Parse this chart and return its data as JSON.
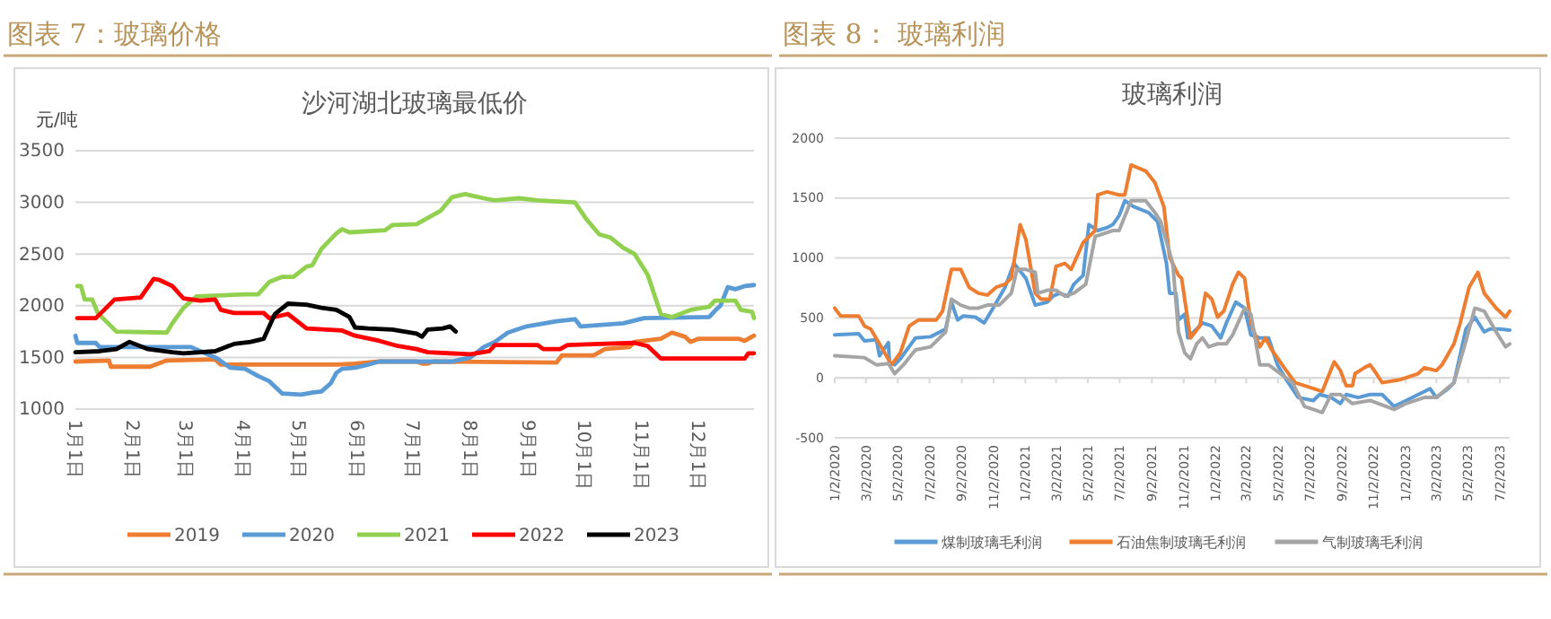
{
  "chart_data": [
    {
      "type": "line",
      "title": "图表 7：玻璃价格",
      "subtitle": "沙河湖北玻璃最低价",
      "ylabel": "元/吨",
      "xlim": [
        "--01-01",
        "--12-31"
      ],
      "xticks": [
        {
          "value": "--01-01",
          "label": "1月1日"
        },
        {
          "value": "--02-01",
          "label": "2月1日"
        },
        {
          "value": "--03-01",
          "label": "3月1日"
        },
        {
          "value": "--04-01",
          "label": "4月1日"
        },
        {
          "value": "--05-01",
          "label": "5月1日"
        },
        {
          "value": "--06-01",
          "label": "6月1日"
        },
        {
          "value": "--07-01",
          "label": "7月1日"
        },
        {
          "value": "--08-01",
          "label": "8月1日"
        },
        {
          "value": "--09-01",
          "label": "9月1日"
        },
        {
          "value": "--10-01",
          "label": "10月1日"
        },
        {
          "value": "--11-01",
          "label": "11月1日"
        },
        {
          "value": "--12-01",
          "label": "12月1日"
        }
      ],
      "ylim": [
        1000,
        3500
      ],
      "yticks": [
        1000,
        1500,
        2000,
        2500,
        3000,
        3500
      ],
      "grid": "y",
      "legend": "bottom",
      "marker": "none",
      "line_style": "solid",
      "series": [
        {
          "name": "2019",
          "color": "#ed7d31",
          "x": [
            "--01-01",
            "--01-19",
            "--01-20",
            "--02-10",
            "--02-19",
            "--03-17",
            "--03-20",
            "--05-21",
            "--05-31",
            "--06-13",
            "--07-03",
            "--07-06",
            "--07-09",
            "--07-12",
            "--09-16",
            "--09-19",
            "--10-06",
            "--10-12",
            "--10-25",
            "--10-28",
            "--11-11",
            "--11-17",
            "--11-24",
            "--11-27",
            "--12-01",
            "--12-23",
            "--12-26",
            "--12-31"
          ],
          "values": [
            1460,
            1470,
            1410,
            1410,
            1470,
            1480,
            1430,
            1430,
            1440,
            1460,
            1460,
            1440,
            1440,
            1460,
            1450,
            1520,
            1520,
            1580,
            1600,
            1650,
            1680,
            1740,
            1700,
            1650,
            1680,
            1680,
            1660,
            1710
          ]
        },
        {
          "name": "2020",
          "color": "#5b9bd5",
          "x": [
            "--01-01",
            "--01-02",
            "--01-12",
            "--01-14",
            "--03-04",
            "--03-18",
            "--03-25",
            "--04-02",
            "--04-09",
            "--04-15",
            "--04-22",
            "--05-02",
            "--05-08",
            "--05-13",
            "--05-18",
            "--05-21",
            "--05-24",
            "--05-31",
            "--06-07",
            "--06-13",
            "--07-22",
            "--08-01",
            "--08-08",
            "--08-14",
            "--08-21",
            "--08-31",
            "--09-16",
            "--09-26",
            "--09-29",
            "--10-22",
            "--11-02",
            "--12-07",
            "--12-10",
            "--12-13",
            "--12-17",
            "--12-21",
            "--12-26",
            "--12-31"
          ],
          "values": [
            1710,
            1640,
            1640,
            1600,
            1600,
            1490,
            1400,
            1390,
            1320,
            1270,
            1150,
            1140,
            1160,
            1170,
            1250,
            1350,
            1390,
            1400,
            1430,
            1460,
            1460,
            1500,
            1600,
            1650,
            1740,
            1800,
            1850,
            1870,
            1800,
            1830,
            1880,
            1890,
            1950,
            2000,
            2180,
            2160,
            2190,
            2200
          ]
        },
        {
          "name": "2021",
          "color": "#92d050",
          "x": [
            "--01-02",
            "--01-04",
            "--01-06",
            "--01-10",
            "--01-13",
            "--01-23",
            "--02-19",
            "--02-22",
            "--02-28",
            "--03-07",
            "--04-02",
            "--04-09",
            "--04-15",
            "--04-22",
            "--04-28",
            "--05-05",
            "--05-08",
            "--05-13",
            "--05-21",
            "--05-24",
            "--05-28",
            "--06-16",
            "--06-20",
            "--07-03",
            "--07-16",
            "--07-22",
            "--07-29",
            "--08-08",
            "--08-14",
            "--08-27",
            "--09-06",
            "--09-26",
            "--10-02",
            "--10-09",
            "--10-15",
            "--10-22",
            "--10-28",
            "--11-04",
            "--11-11",
            "--11-17",
            "--11-27",
            "--12-07",
            "--12-10",
            "--12-21",
            "--12-24",
            "--12-30",
            "--12-31"
          ],
          "values": [
            2190,
            2190,
            2060,
            2060,
            1930,
            1750,
            1740,
            1830,
            1980,
            2090,
            2110,
            2110,
            2230,
            2280,
            2280,
            2380,
            2390,
            2550,
            2700,
            2740,
            2710,
            2730,
            2780,
            2790,
            2920,
            3050,
            3080,
            3040,
            3020,
            3040,
            3020,
            3000,
            2840,
            2690,
            2660,
            2560,
            2500,
            2300,
            1920,
            1890,
            1960,
            1990,
            2050,
            2050,
            1960,
            1940,
            1880
          ]
        },
        {
          "name": "2022",
          "color": "#ff0000",
          "x": [
            "--01-02",
            "--01-12",
            "--01-22",
            "--02-05",
            "--02-12",
            "--02-15",
            "--02-22",
            "--02-28",
            "--03-09",
            "--03-17",
            "--03-20",
            "--03-27",
            "--04-12",
            "--04-15",
            "--04-25",
            "--05-05",
            "--05-24",
            "--05-31",
            "--06-13",
            "--06-23",
            "--07-03",
            "--07-09",
            "--08-01",
            "--08-11",
            "--08-14",
            "--09-06",
            "--09-09",
            "--09-18",
            "--09-22",
            "--10-09",
            "--10-28",
            "--11-04",
            "--11-11",
            "--12-26",
            "--12-28",
            "--12-31"
          ],
          "values": [
            1880,
            1880,
            2060,
            2080,
            2260,
            2250,
            2190,
            2070,
            2050,
            2060,
            1960,
            1930,
            1930,
            1880,
            1920,
            1780,
            1760,
            1710,
            1660,
            1610,
            1580,
            1550,
            1530,
            1560,
            1620,
            1620,
            1580,
            1580,
            1620,
            1630,
            1640,
            1610,
            1490,
            1490,
            1540,
            1540
          ]
        },
        {
          "name": "2023",
          "color": "#000000",
          "x": [
            "--01-01",
            "--01-14",
            "--01-23",
            "--01-30",
            "--02-09",
            "--02-22",
            "--02-28",
            "--03-17",
            "--03-27",
            "--04-05",
            "--04-12",
            "--04-18",
            "--04-25",
            "--05-05",
            "--05-13",
            "--05-21",
            "--05-28",
            "--05-31",
            "--06-07",
            "--06-20",
            "--07-03",
            "--07-06",
            "--07-09",
            "--07-17",
            "--07-21",
            "--07-24"
          ],
          "values": [
            1550,
            1560,
            1580,
            1650,
            1580,
            1550,
            1540,
            1560,
            1630,
            1650,
            1680,
            1920,
            2020,
            2010,
            1980,
            1960,
            1890,
            1790,
            1780,
            1770,
            1730,
            1700,
            1770,
            1780,
            1800,
            1750
          ]
        }
      ]
    },
    {
      "type": "line",
      "title": "图表 8： 玻璃利润",
      "subtitle": "玻璃利润",
      "xlim": [
        "2020-01-02",
        "2023-07-21"
      ],
      "xticks": [
        {
          "value": "2020-01-02",
          "label": "1/2/2020"
        },
        {
          "value": "2020-03-02",
          "label": "3/2/2020"
        },
        {
          "value": "2020-05-02",
          "label": "5/2/2020"
        },
        {
          "value": "2020-07-02",
          "label": "7/2/2020"
        },
        {
          "value": "2020-09-02",
          "label": "9/2/2020"
        },
        {
          "value": "2020-11-02",
          "label": "11/2/2020"
        },
        {
          "value": "2021-01-02",
          "label": "1/2/2021"
        },
        {
          "value": "2021-03-02",
          "label": "3/2/2021"
        },
        {
          "value": "2021-05-02",
          "label": "5/2/2021"
        },
        {
          "value": "2021-07-02",
          "label": "7/2/2021"
        },
        {
          "value": "2021-09-02",
          "label": "9/2/2021"
        },
        {
          "value": "2021-11-02",
          "label": "11/2/2021"
        },
        {
          "value": "2022-01-02",
          "label": "1/2/2022"
        },
        {
          "value": "2022-03-02",
          "label": "3/2/2022"
        },
        {
          "value": "2022-05-02",
          "label": "5/2/2022"
        },
        {
          "value": "2022-07-02",
          "label": "7/2/2022"
        },
        {
          "value": "2022-09-02",
          "label": "9/2/2022"
        },
        {
          "value": "2022-11-02",
          "label": "11/2/2022"
        },
        {
          "value": "2023-01-02",
          "label": "1/2/2023"
        },
        {
          "value": "2023-03-02",
          "label": "3/2/2023"
        },
        {
          "value": "2023-05-02",
          "label": "5/2/2023"
        },
        {
          "value": "2023-07-02",
          "label": "7/2/2023"
        }
      ],
      "ylim": [
        -500,
        2000
      ],
      "yticks": [
        -500,
        0,
        500,
        1000,
        1500,
        2000
      ],
      "grid": "y",
      "legend": "bottom",
      "marker": "none",
      "line_style": "solid",
      "series": [
        {
          "name": "煤制玻璃毛利润",
          "color": "#5b9bd5",
          "x": [
            "2020-01-02",
            "2020-02-17",
            "2020-02-28",
            "2020-03-22",
            "2020-03-28",
            "2020-04-14",
            "2020-04-16",
            "2020-04-26",
            "2020-05-07",
            "2020-06-05",
            "2020-07-04",
            "2020-08-02",
            "2020-08-13",
            "2020-08-25",
            "2020-09-05",
            "2020-09-28",
            "2020-10-15",
            "2020-11-01",
            "2020-11-24",
            "2020-12-11",
            "2021-01-03",
            "2021-01-21",
            "2021-02-13",
            "2021-02-24",
            "2021-03-08",
            "2021-03-25",
            "2021-04-05",
            "2021-04-23",
            "2021-05-04",
            "2021-05-21",
            "2021-06-08",
            "2021-06-19",
            "2021-07-01",
            "2021-07-12",
            "2021-07-29",
            "2021-08-27",
            "2021-09-13",
            "2021-09-30",
            "2021-10-06",
            "2021-10-18",
            "2021-10-23",
            "2021-11-04",
            "2021-11-10",
            "2021-11-27",
            "2021-12-08",
            "2021-12-26",
            "2022-01-12",
            "2022-01-23",
            "2022-02-10",
            "2022-02-27",
            "2022-03-11",
            "2022-03-28",
            "2022-04-14",
            "2022-05-01",
            "2022-05-18",
            "2022-06-10",
            "2022-07-09",
            "2022-07-21",
            "2022-08-12",
            "2022-08-30",
            "2022-09-10",
            "2022-10-03",
            "2022-10-26",
            "2022-11-18",
            "2022-12-11",
            "2023-01-03",
            "2023-02-07",
            "2023-02-18",
            "2023-03-02",
            "2023-03-25",
            "2023-04-05",
            "2023-04-28",
            "2023-05-15",
            "2023-06-02",
            "2023-06-13",
            "2023-07-01",
            "2023-07-21"
          ],
          "values": [
            358,
            368,
            308,
            318,
            184,
            294,
            134,
            109,
            159,
            333,
            343,
            408,
            632,
            483,
            517,
            507,
            458,
            582,
            756,
            955,
            831,
            607,
            632,
            682,
            706,
            682,
            781,
            856,
            1279,
            1229,
            1254,
            1279,
            1353,
            1478,
            1428,
            1378,
            1303,
            955,
            706,
            706,
            483,
            532,
            333,
            408,
            458,
            433,
            333,
            458,
            632,
            582,
            358,
            333,
            333,
            109,
            -15,
            -164,
            -189,
            -139,
            -164,
            -214,
            -139,
            -164,
            -139,
            -139,
            -239,
            -189,
            -114,
            -90,
            -164,
            -90,
            -40,
            408,
            507,
            383,
            408,
            408,
            398
          ]
        },
        {
          "name": "石油焦制玻璃毛利润",
          "color": "#ed7d31",
          "x": [
            "2020-01-02",
            "2020-01-13",
            "2020-02-17",
            "2020-02-28",
            "2020-03-11",
            "2020-03-28",
            "2020-04-20",
            "2020-05-07",
            "2020-05-24",
            "2020-06-11",
            "2020-07-15",
            "2020-07-27",
            "2020-08-13",
            "2020-08-31",
            "2020-09-16",
            "2020-10-04",
            "2020-10-21",
            "2020-11-07",
            "2020-11-24",
            "2020-12-06",
            "2020-12-23",
            "2021-01-03",
            "2021-01-21",
            "2021-02-01",
            "2021-02-18",
            "2021-03-02",
            "2021-03-19",
            "2021-03-31",
            "2021-04-23",
            "2021-05-16",
            "2021-05-21",
            "2021-06-08",
            "2021-07-01",
            "2021-07-12",
            "2021-07-24",
            "2021-08-21",
            "2021-09-08",
            "2021-09-25",
            "2021-10-06",
            "2021-10-23",
            "2021-10-29",
            "2021-11-15",
            "2021-12-03",
            "2021-12-14",
            "2021-12-26",
            "2022-01-06",
            "2022-01-18",
            "2022-02-04",
            "2022-02-15",
            "2022-02-27",
            "2022-03-11",
            "2022-03-28",
            "2022-04-08",
            "2022-04-20",
            "2022-05-18",
            "2022-06-04",
            "2022-06-22",
            "2022-07-09",
            "2022-07-26",
            "2022-08-18",
            "2022-08-30",
            "2022-09-10",
            "2022-09-22",
            "2022-09-27",
            "2022-10-15",
            "2022-10-26",
            "2022-11-07",
            "2022-11-18",
            "2022-12-23",
            "2023-01-26",
            "2023-02-07",
            "2023-03-02",
            "2023-03-13",
            "2023-04-05",
            "2023-04-17",
            "2023-05-04",
            "2023-05-21",
            "2023-06-02",
            "2023-06-25",
            "2023-07-13",
            "2023-07-21"
          ],
          "values": [
            582,
            517,
            517,
            433,
            408,
            284,
            109,
            209,
            433,
            483,
            483,
            557,
            905,
            905,
            756,
            706,
            691,
            756,
            781,
            831,
            1278,
            1154,
            706,
            657,
            657,
            930,
            955,
            905,
            1129,
            1229,
            1527,
            1552,
            1527,
            1527,
            1776,
            1726,
            1627,
            1428,
            1005,
            856,
            831,
            333,
            433,
            706,
            657,
            507,
            557,
            781,
            881,
            831,
            458,
            259,
            333,
            234,
            60,
            -40,
            -65,
            -90,
            -114,
            134,
            60,
            -65,
            -65,
            35,
            85,
            109,
            35,
            -40,
            -15,
            35,
            85,
            60,
            109,
            284,
            458,
            756,
            881,
            706,
            582,
            507,
            557
          ]
        },
        {
          "name": "气制玻璃毛利润",
          "color": "#a5a5a5",
          "x": [
            "2020-01-02",
            "2020-02-28",
            "2020-03-22",
            "2020-04-14",
            "2020-04-26",
            "2020-05-13",
            "2020-06-05",
            "2020-07-04",
            "2020-08-02",
            "2020-08-13",
            "2020-08-31",
            "2020-09-16",
            "2020-10-04",
            "2020-10-21",
            "2020-11-13",
            "2020-12-06",
            "2020-12-17",
            "2021-01-03",
            "2021-01-21",
            "2021-01-26",
            "2021-02-13",
            "2021-03-02",
            "2021-03-19",
            "2021-04-05",
            "2021-04-28",
            "2021-05-16",
            "2021-06-19",
            "2021-07-01",
            "2021-07-24",
            "2021-08-21",
            "2021-09-08",
            "2021-09-19",
            "2021-10-12",
            "2021-10-23",
            "2021-11-04",
            "2021-11-15",
            "2021-11-27",
            "2021-12-08",
            "2021-12-20",
            "2022-01-06",
            "2022-01-23",
            "2022-02-04",
            "2022-02-27",
            "2022-03-11",
            "2022-03-28",
            "2022-04-14",
            "2022-05-07",
            "2022-05-30",
            "2022-06-22",
            "2022-07-09",
            "2022-07-26",
            "2022-08-12",
            "2022-08-30",
            "2022-09-22",
            "2022-10-26",
            "2022-12-11",
            "2023-01-03",
            "2023-02-07",
            "2023-03-02",
            "2023-04-05",
            "2023-04-28",
            "2023-05-15",
            "2023-06-02",
            "2023-06-25",
            "2023-07-13",
            "2023-07-21"
          ],
          "values": [
            184,
            169,
            109,
            119,
            35,
            109,
            234,
            259,
            383,
            657,
            607,
            582,
            582,
            607,
            607,
            706,
            905,
            905,
            881,
            706,
            731,
            731,
            682,
            706,
            781,
            1179,
            1229,
            1229,
            1478,
            1478,
            1378,
            1303,
            955,
            383,
            209,
            159,
            284,
            333,
            259,
            284,
            284,
            358,
            582,
            532,
            109,
            109,
            35,
            -40,
            -239,
            -264,
            -289,
            -139,
            -139,
            -214,
            -189,
            -264,
            -214,
            -164,
            -164,
            -40,
            308,
            582,
            557,
            383,
            259,
            284
          ]
        }
      ]
    }
  ]
}
